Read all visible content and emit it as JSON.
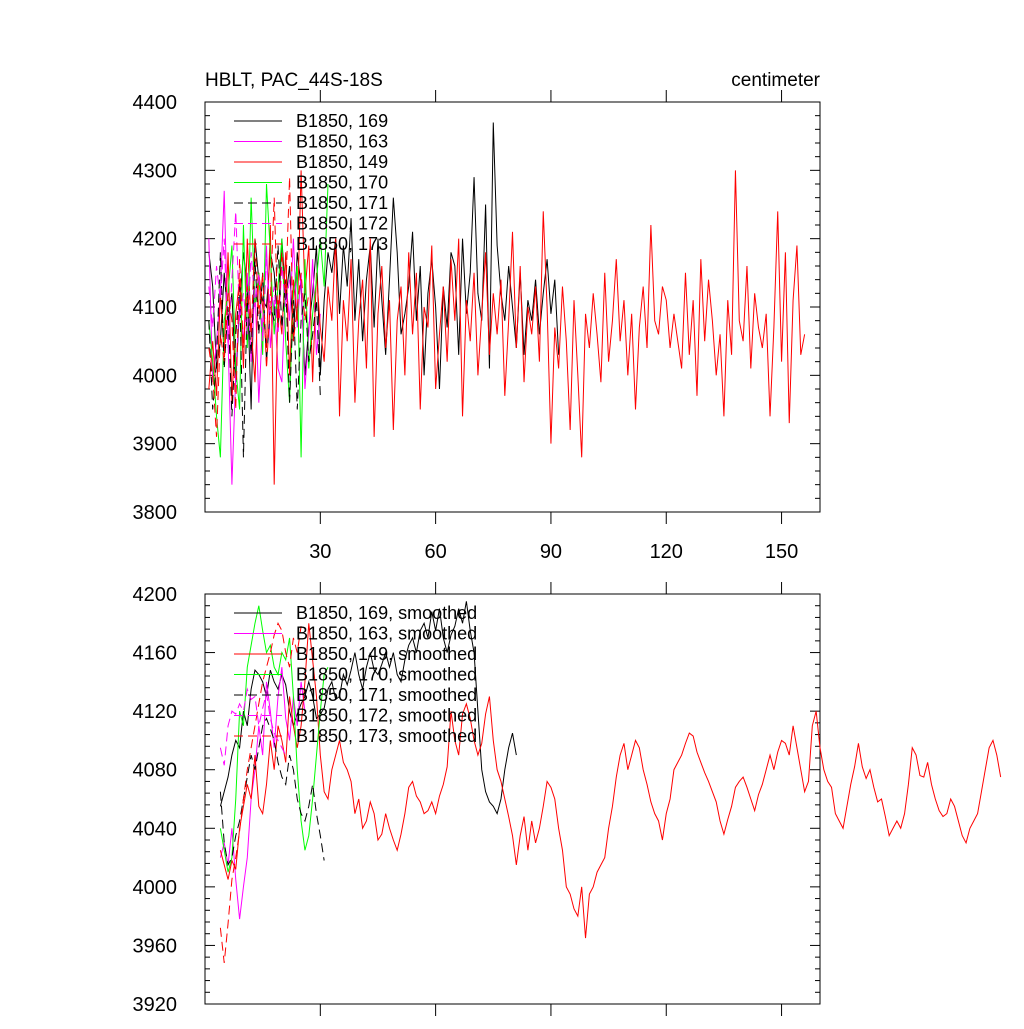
{
  "chart_data": [
    {
      "type": "line",
      "title": "HBLT, PAC_44S-18S",
      "units": "centimeter",
      "xlim": [
        0,
        160
      ],
      "ylim": [
        3800,
        4400
      ],
      "x_ticks": [
        30,
        60,
        90,
        120,
        150
      ],
      "y_ticks": [
        3800,
        3900,
        4000,
        4100,
        4200,
        4300,
        4400
      ],
      "legend_position": "top-left",
      "series": [
        {
          "name": "B1850, 169",
          "color": "#000000",
          "dash": "solid",
          "x_start": 1,
          "values": [
            4180,
            4130,
            4010,
            4050,
            4150,
            4080,
            4120,
            3990,
            4100,
            4180,
            4130,
            3950,
            4200,
            4140,
            4110,
            4100,
            4180,
            4150,
            4070,
            4200,
            4110,
            4160,
            4050,
            4180,
            4130,
            4000,
            4070,
            4120,
            4190,
            4000,
            4110,
            4180,
            4150,
            4200,
            4090,
            4190,
            4130,
            4230,
            4080,
            4170,
            4050,
            4140,
            4190,
            4070,
            4200,
            4110,
            4030,
            4140,
            4260,
            4180,
            4060,
            4090,
            4130,
            4210,
            4080,
            4160,
            4000,
            4120,
            4170,
            4100,
            3980,
            4130,
            4070,
            4180,
            4160,
            4030,
            4200,
            4090,
            4150,
            4290,
            4120,
            4080,
            4250,
            4010,
            4370,
            4190,
            4120,
            4080,
            4160,
            4100,
            4040,
            4150,
            4030,
            4110,
            4080,
            4140,
            4060,
            4120,
            4170,
            4090,
            4140,
            4030
          ]
        },
        {
          "name": "B1850, 163",
          "color": "#ff00ff",
          "dash": "solid",
          "x_start": 1,
          "values": [
            4200,
            3990,
            4050,
            4120,
            4270,
            4050,
            3840,
            4000,
            4110,
            4050,
            4150,
            4020,
            4130,
            3960,
            4080,
            4190,
            4040,
            4110,
            4010,
            3990,
            4140,
            4080,
            4200,
            4070,
            4150,
            3980,
            4060,
            4170,
            4030,
            4090
          ]
        },
        {
          "name": "B1850, 149",
          "color": "#ff0000",
          "dash": "solid",
          "x_start": 1,
          "values": [
            3980,
            4050,
            3970,
            4120,
            4030,
            4180,
            3960,
            4090,
            4140,
            4010,
            4200,
            4070,
            3990,
            4150,
            4100,
            4040,
            4220,
            3840,
            4110,
            4060,
            4180,
            4000,
            4140,
            4080,
            4300,
            4120,
            4190,
            3990,
            4150,
            4070,
            4020,
            4130,
            4080,
            4200,
            3940,
            4110,
            4050,
            4170,
            3960,
            4080,
            4140,
            4010,
            4200,
            3910,
            4090,
            4160,
            4040,
            4110,
            3920,
            4080,
            4130,
            4000,
            4180,
            4060,
            4150,
            3950,
            4100,
            4070,
            4190,
            3980,
            4060,
            4130,
            4020,
            4170,
            4080,
            4200,
            3940,
            4110,
            4050,
            4150,
            4000,
            4090,
            4180,
            4030,
            4120,
            4060,
            4140,
            3970,
            4080,
            4210,
            4040,
            4160,
            3990,
            4100,
            4060,
            4130,
            4020,
            4240,
            4100,
            3900,
            4070,
            4010,
            4130,
            4050,
            3920,
            4110,
            4000,
            3880,
            4090,
            4040,
            4120,
            4060,
            3990,
            4150,
            4020,
            4080,
            4170,
            4050,
            4110,
            4000,
            4090,
            3950,
            4070,
            4130,
            4040,
            4220,
            4080,
            4060,
            4130,
            4110,
            4040,
            4090,
            4050,
            4010,
            4150,
            4030,
            4110,
            3970,
            4170,
            4050,
            4140,
            4080,
            4000,
            4060,
            3940,
            4110,
            4030,
            4300,
            4080,
            4050,
            4160,
            4010,
            4120,
            4070,
            4040,
            4090,
            3940,
            4070,
            4240,
            4020,
            4180,
            3930,
            4110,
            4190,
            4030,
            4060
          ]
        },
        {
          "name": "B1850, 170",
          "color": "#00ff00",
          "dash": "solid",
          "x_start": 1,
          "values": [
            4080,
            4020,
            3940,
            3880,
            4080,
            4120,
            4190,
            4010,
            3950,
            4220,
            4040,
            4260,
            4100,
            4150,
            4030,
            4280,
            4180,
            4060,
            4130,
            4200,
            4050,
            3960,
            4120,
            4160,
            3880,
            4170,
            4010,
            4090,
            4140,
            4200,
            4130,
            4280
          ]
        },
        {
          "name": "B1850, 171",
          "color": "#000000",
          "dash": "dash",
          "x_start": 1,
          "values": [
            4080,
            3950,
            4020,
            4180,
            4010,
            4100,
            3940,
            4060,
            4130,
            3880,
            4120,
            4030,
            4170,
            4060,
            4150,
            4020,
            4100,
            4080,
            4190,
            4070,
            4140,
            3960,
            4110,
            3950,
            4080,
            4120,
            4020,
            4060,
            4110,
            3970
          ]
        },
        {
          "name": "B1850, 172",
          "color": "#ff00ff",
          "dash": "dash",
          "x_start": 1,
          "values": [
            4130,
            4070,
            4160,
            4110,
            4200,
            4040,
            4140,
            4240,
            4080,
            4120,
            4060,
            4180,
            4100,
            4150,
            4050,
            4170,
            4090,
            4130,
            4060,
            4160,
            4100,
            4140
          ]
        },
        {
          "name": "B1850, 173",
          "color": "#ff0000",
          "dash": "dash",
          "x_start": 1,
          "values": [
            4040,
            4000,
            3910,
            4060,
            4020,
            4120,
            4080,
            3950,
            4170,
            4040,
            4130,
            4060,
            4200,
            4090,
            4150,
            4010,
            4110,
            4260,
            4070,
            4180,
            4120,
            4290,
            4050,
            4100,
            4150,
            4080,
            4120
          ]
        }
      ]
    },
    {
      "type": "line",
      "title": "",
      "xlim": [
        0,
        160
      ],
      "ylim": [
        3920,
        4200
      ],
      "x_ticks": [
        30,
        60,
        90,
        120,
        150
      ],
      "y_ticks": [
        3920,
        3960,
        4000,
        4040,
        4080,
        4120,
        4160,
        4200
      ],
      "legend_position": "top-left",
      "series": [
        {
          "name": "B1850, 169, smoothed",
          "color": "#000000",
          "dash": "solid",
          "x_start": 4,
          "values": [
            4055,
            4065,
            4075,
            4090,
            4100,
            4095,
            4120,
            4110,
            4135,
            4148,
            4145,
            4140,
            4130,
            4148,
            4140,
            4135,
            4145,
            4138,
            4120,
            4110,
            4118,
            4125,
            4130,
            4140,
            4130,
            4115,
            4118,
            4122,
            4135,
            4140,
            4128,
            4130,
            4145,
            4138,
            4148,
            4160,
            4145,
            4135,
            4150,
            4160,
            4148,
            4145,
            4152,
            4160,
            4150,
            4160,
            4145,
            4140,
            4155,
            4165,
            4170,
            4160,
            4175,
            4180,
            4170,
            4188,
            4175,
            4190,
            4170,
            4160,
            4172,
            4178,
            4190,
            4180,
            4195,
            4175,
            4160,
            4120,
            4080,
            4065,
            4058,
            4055,
            4050,
            4060,
            4080,
            4095,
            4105,
            4090
          ]
        },
        {
          "name": "B1850, 163, smoothed",
          "color": "#ff00ff",
          "dash": "solid",
          "x_start": 4,
          "values": [
            4020,
            4030,
            4015,
            4040,
            4005,
            3978,
            4000,
            4020,
            4060,
            4080,
            4110,
            4090,
            4140,
            4120,
            4095,
            4130,
            4150,
            4115,
            4100,
            4130,
            4110,
            4140,
            4120
          ]
        },
        {
          "name": "B1850, 149, smoothed",
          "color": "#ff0000",
          "dash": "solid",
          "x_start": 4,
          "values": [
            4025,
            4015,
            4005,
            4018,
            4012,
            4040,
            4055,
            4070,
            4060,
            4090,
            4055,
            4050,
            4070,
            4100,
            4080,
            4110,
            4100,
            4085,
            4130,
            4110,
            4095,
            4110,
            4140,
            4180,
            4155,
            4130,
            4090,
            4065,
            4060,
            4080,
            4090,
            4100,
            4085,
            4080,
            4072,
            4050,
            4060,
            4040,
            4045,
            4058,
            4050,
            4032,
            4036,
            4050,
            4040,
            4032,
            4025,
            4036,
            4050,
            4068,
            4072,
            4062,
            4058,
            4050,
            4052,
            4058,
            4050,
            4062,
            4070,
            4082,
            4120,
            4100,
            4090,
            4118,
            4125,
            4115,
            4100,
            4090,
            4098,
            4118,
            4130,
            4100,
            4080,
            4072,
            4060,
            4048,
            4035,
            4015,
            4035,
            4048,
            4025,
            4045,
            4030,
            4040,
            4055,
            4072,
            4068,
            4060,
            4040,
            4025,
            4000,
            3995,
            3985,
            3980,
            4000,
            3965,
            3995,
            4000,
            4010,
            4015,
            4020,
            4040,
            4055,
            4075,
            4090,
            4098,
            4080,
            4090,
            4100,
            4095,
            4080,
            4070,
            4058,
            4050,
            4045,
            4032,
            4050,
            4060,
            4080,
            4085,
            4090,
            4098,
            4105,
            4103,
            4092,
            4085,
            4078,
            4072,
            4065,
            4058,
            4045,
            4036,
            4046,
            4055,
            4068,
            4072,
            4075,
            4068,
            4060,
            4052,
            4063,
            4070,
            4080,
            4090,
            4080,
            4092,
            4100,
            4098,
            4090,
            4110,
            4095,
            4080,
            4065,
            4072,
            4110,
            4120,
            4095,
            4080,
            4072,
            4068,
            4050,
            4045,
            4040,
            4055,
            4070,
            4082,
            4098,
            4082,
            4074,
            4080,
            4068,
            4058,
            4060,
            4048,
            4035,
            4040,
            4045,
            4040,
            4050,
            4070,
            4095,
            4090,
            4076,
            4075,
            4085,
            4070,
            4060,
            4052,
            4048,
            4050,
            4060,
            4055,
            4045,
            4035,
            4030,
            4040,
            4045,
            4050,
            4065,
            4080,
            4095,
            4100,
            4090,
            4075
          ]
        },
        {
          "name": "B1850, 170, smoothed",
          "color": "#00ff00",
          "dash": "solid",
          "x_start": 4,
          "values": [
            4040,
            4025,
            4010,
            4020,
            4060,
            4120,
            4110,
            4150,
            4165,
            4180,
            4192,
            4175,
            4160,
            4165,
            4150,
            4145,
            4160,
            4155,
            4170,
            4130,
            4080,
            4045,
            4025,
            4035,
            4060,
            4090,
            4120,
            4145,
            4150
          ]
        },
        {
          "name": "B1850, 171, smoothed",
          "color": "#000000",
          "dash": "dash",
          "x_start": 4,
          "values": [
            4065,
            4030,
            4015,
            4020,
            4035,
            4045,
            4060,
            4075,
            4090,
            4080,
            4095,
            4110,
            4115,
            4108,
            4100,
            4085,
            4075,
            4070,
            4090,
            4080,
            4060,
            4050,
            4045,
            4055,
            4070,
            4050,
            4035,
            4018
          ]
        },
        {
          "name": "B1850, 172, smoothed",
          "color": "#ff00ff",
          "dash": "dash",
          "x_start": 4,
          "values": [
            4095,
            4083,
            4110,
            4120,
            4118,
            4125,
            4120,
            4135,
            4128,
            4130,
            4110,
            4122,
            4132,
            4115,
            4105,
            4100,
            4095,
            4090
          ]
        },
        {
          "name": "B1850, 173, smoothed",
          "color": "#ff0000",
          "dash": "dash",
          "x_start": 4,
          "values": [
            3972,
            3948,
            3975,
            4005,
            4020,
            4038,
            4060,
            4080,
            4095,
            4110,
            4125,
            4140,
            4150,
            4160,
            4172,
            4180,
            4175,
            4160,
            4150,
            4170,
            4160,
            4178
          ]
        }
      ]
    }
  ]
}
